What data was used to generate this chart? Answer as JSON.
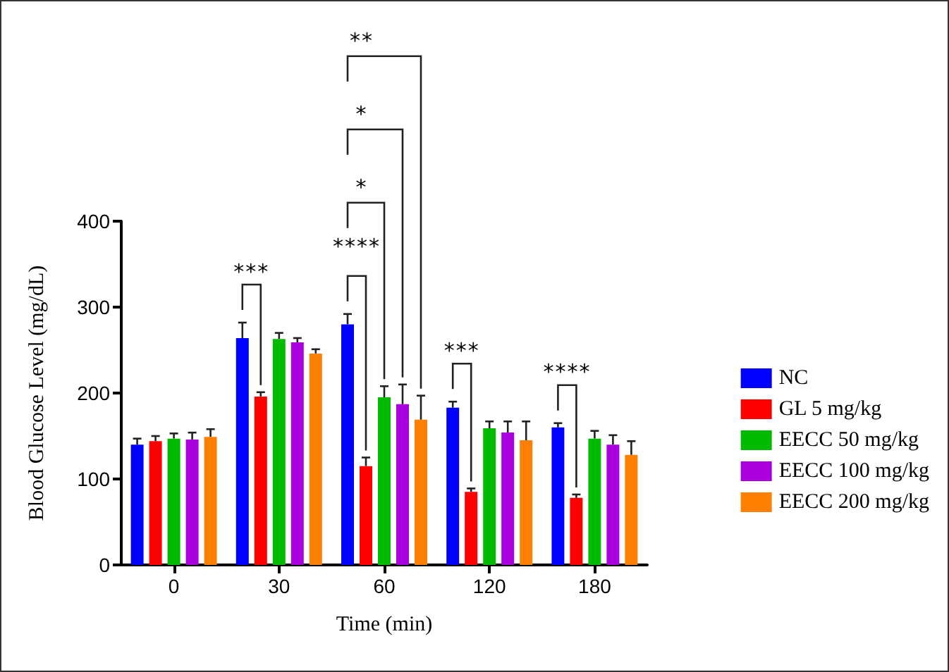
{
  "chart_data": {
    "type": "bar",
    "xlabel": "Time (min)",
    "ylabel": "Blood Glucose Level (mg/dL)",
    "categories": [
      "0",
      "30",
      "60",
      "120",
      "180"
    ],
    "series": [
      {
        "name": "NC",
        "color": "#0000ff",
        "values": [
          140,
          264,
          280,
          183,
          160
        ],
        "errors": [
          [
            140,
            147
          ],
          [
            264,
            282
          ],
          [
            280,
            292
          ],
          [
            183,
            190
          ],
          [
            160,
            165
          ]
        ]
      },
      {
        "name": "GL 5 mg/kg",
        "color": "#ff0000",
        "values": [
          144,
          196,
          115,
          85,
          78
        ],
        "errors": [
          [
            144,
            150
          ],
          [
            196,
            201
          ],
          [
            115,
            125
          ],
          [
            85,
            89
          ],
          [
            78,
            82
          ]
        ]
      },
      {
        "name": "EECC 50 mg/kg",
        "color": "#00bb00",
        "values": [
          147,
          263,
          195,
          159,
          147
        ],
        "errors": [
          [
            147,
            153
          ],
          [
            263,
            270
          ],
          [
            195,
            208
          ],
          [
            159,
            167
          ],
          [
            147,
            156
          ]
        ]
      },
      {
        "name": "EECC 100 mg/kg",
        "color": "#aa00dd",
        "values": [
          146,
          259,
          187,
          154,
          140
        ],
        "errors": [
          [
            146,
            154
          ],
          [
            259,
            264
          ],
          [
            187,
            210
          ],
          [
            154,
            167
          ],
          [
            140,
            151
          ]
        ]
      },
      {
        "name": "EECC 200 mg/kg",
        "color": "#ff8000",
        "values": [
          149,
          246,
          169,
          145,
          128
        ],
        "errors": [
          [
            149,
            158
          ],
          [
            246,
            251
          ],
          [
            169,
            197
          ],
          [
            145,
            167
          ],
          [
            128,
            144
          ]
        ]
      }
    ],
    "ylim": [
      0,
      400
    ],
    "yticks": [
      0,
      100,
      200,
      300,
      400
    ],
    "grid": false,
    "legend": "right",
    "annotations": [
      "***",
      "****",
      "*",
      "*",
      "**",
      "***",
      "****"
    ]
  }
}
